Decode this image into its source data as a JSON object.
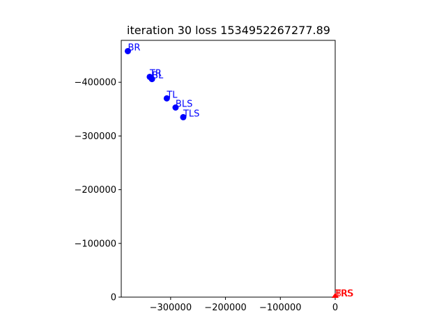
{
  "chart_data": {
    "type": "scatter",
    "title": "iteration 30 loss 1534952267277.89",
    "xlabel": "",
    "ylabel": "",
    "xlim": [
      -390000,
      0
    ],
    "ylim": [
      0,
      478000
    ],
    "y_axis_inverted": true,
    "grid": false,
    "x_ticks": [
      {
        "value": -300000,
        "label": "−300000"
      },
      {
        "value": -200000,
        "label": "−200000"
      },
      {
        "value": -100000,
        "label": "−100000"
      },
      {
        "value": 0,
        "label": "0"
      }
    ],
    "y_ticks": [
      {
        "value": 400000,
        "label": "−400000"
      },
      {
        "value": 300000,
        "label": "−300000"
      },
      {
        "value": 200000,
        "label": "−200000"
      },
      {
        "value": 100000,
        "label": "−100000"
      },
      {
        "value": 0,
        "label": "0"
      }
    ],
    "series": [
      {
        "color": "#0000ff",
        "marker": "circle",
        "points": [
          {
            "label": "BR",
            "x": -378000,
            "y": 458000
          },
          {
            "label": "TR",
            "x": -338000,
            "y": 410000
          },
          {
            "label": "BL",
            "x": -334000,
            "y": 406000
          },
          {
            "label": "TL",
            "x": -307000,
            "y": 370000
          },
          {
            "label": "BLS",
            "x": -291000,
            "y": 353000
          },
          {
            "label": "TLS",
            "x": -277000,
            "y": 335000
          }
        ]
      },
      {
        "color": "#ff0000",
        "marker": "triangle",
        "points": [
          {
            "label": "BRS",
            "x": 0,
            "y": 0
          },
          {
            "label": "TRS",
            "x": 0,
            "y": 0
          }
        ]
      }
    ]
  }
}
